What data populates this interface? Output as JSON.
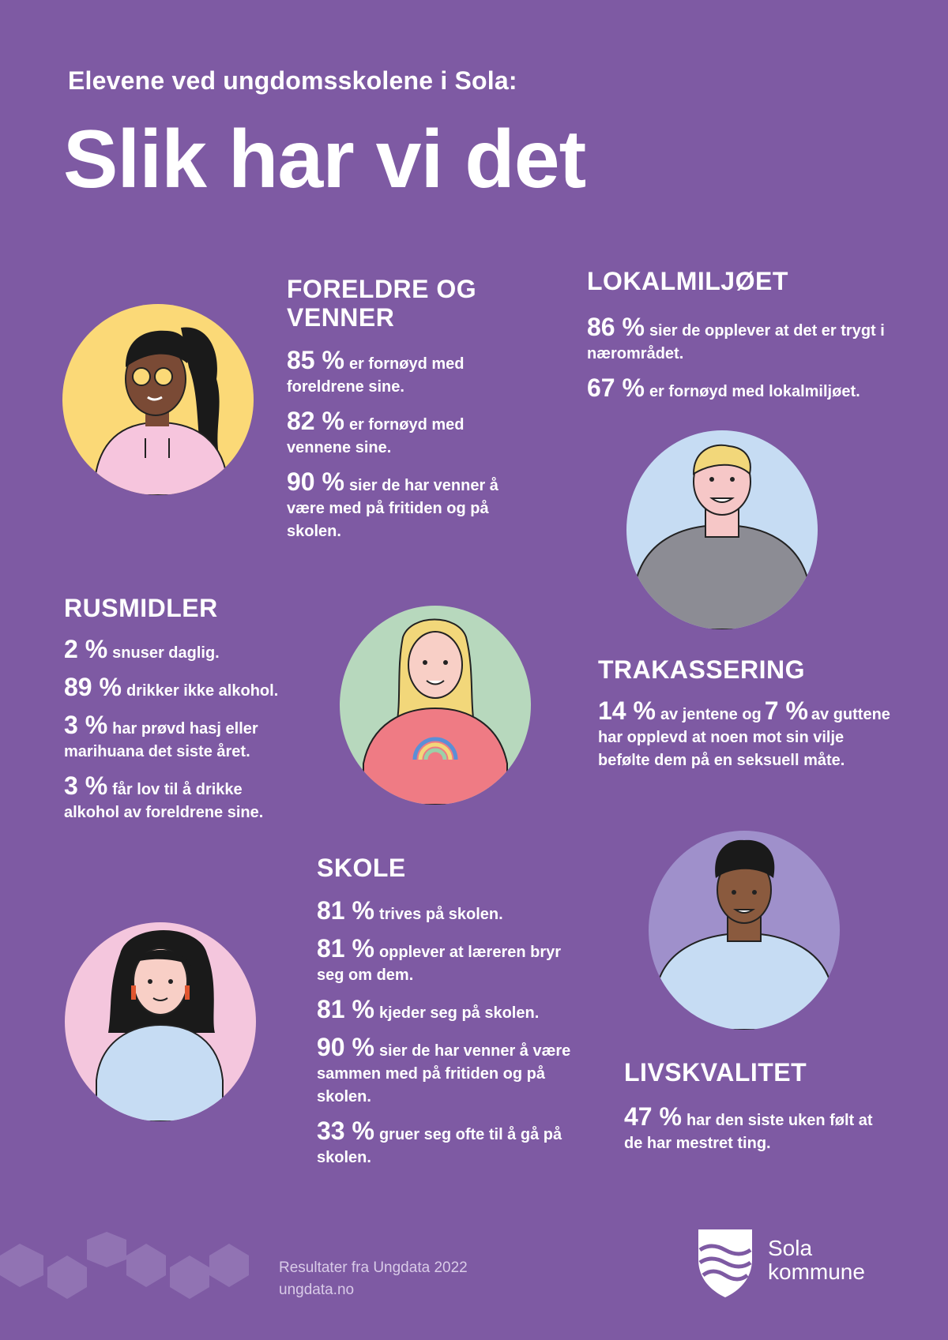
{
  "header": {
    "subtitle": "Elevene ved ungdomsskolene i Sola:",
    "title": "Slik har vi det"
  },
  "sections": {
    "foreldre": {
      "heading_line1": "FORELDRE OG",
      "heading_line2": "VENNER",
      "stats": [
        {
          "value": "85 %",
          "text": "er fornøyd med foreldrene sine."
        },
        {
          "value": "82 %",
          "text": "er fornøyd med vennene sine."
        },
        {
          "value": "90 %",
          "text": "sier de har venner å være med på fritiden og på skolen."
        }
      ]
    },
    "lokalmiljo": {
      "heading": "LOKALMILJØET",
      "stats": [
        {
          "value": "86 %",
          "text": "sier de opplever at det er trygt i nærområdet."
        },
        {
          "value": "67 %",
          "text": "er fornøyd med lokalmiljøet."
        }
      ]
    },
    "rusmidler": {
      "heading": "RUSMIDLER",
      "stats": [
        {
          "value": "2 %",
          "text": "snuser daglig."
        },
        {
          "value": "89 %",
          "text": "drikker ikke alkohol."
        },
        {
          "value": "3 %",
          "text": "har prøvd hasj eller marihuana det siste året."
        },
        {
          "value": "3 %",
          "text": "får lov til å drikke alkohol av foreldrene sine."
        }
      ]
    },
    "trakassering": {
      "heading": "TRAKASSERING",
      "value1": "14 %",
      "text1": "av jentene og",
      "value2": "7 %",
      "text2": "av guttene har opplevd at noen mot sin vilje befølte dem på en seksuell måte."
    },
    "skole": {
      "heading": "SKOLE",
      "stats": [
        {
          "value": "81 %",
          "text": "trives på skolen."
        },
        {
          "value": "81 %",
          "text": "opplever at læreren bryr seg om dem."
        },
        {
          "value": "81 %",
          "text": "kjeder seg på skolen."
        },
        {
          "value": "90 %",
          "text": "sier de har venner å være sammen med på fritiden og på skolen."
        },
        {
          "value": "33 %",
          "text": "gruer seg ofte til å gå på skolen."
        }
      ]
    },
    "livskvalitet": {
      "heading": "LIVSKVALITET",
      "stats": [
        {
          "value": "47 %",
          "text": "har den siste uken følt at de har mestret ting."
        }
      ]
    }
  },
  "footer": {
    "source_line1": "Resultater fra Ungdata 2022",
    "source_line2": "ungdata.no",
    "logo_line1": "Sola",
    "logo_line2": "kommune"
  },
  "colors": {
    "background": "#7e5aa3",
    "avatar_yellow": "#fbd977",
    "avatar_blue": "#c6dcf3",
    "avatar_green": "#b7d8bd",
    "avatar_pink": "#f4c6dd",
    "avatar_purple": "#9f90cb"
  },
  "icons": [
    "person-sunglasses-icon",
    "person-blond-man-icon",
    "person-blond-woman-icon",
    "person-dark-hair-woman-icon",
    "person-curly-hair-man-icon",
    "sola-shield-icon"
  ]
}
